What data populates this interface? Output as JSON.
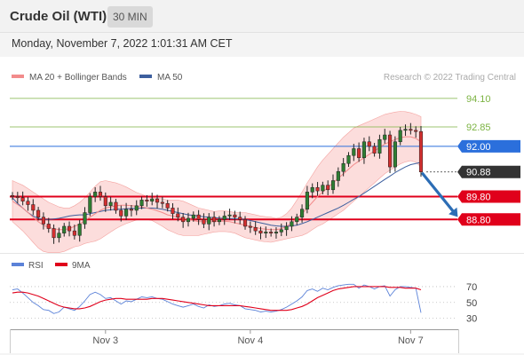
{
  "header": {
    "title": "Crude Oil (WTI)",
    "timeframe": "30 MIN",
    "datetime": "Monday, November 7, 2022 1:01:31 AM CET"
  },
  "chart_data": {
    "type": "candlestick",
    "legend": [
      {
        "name": "MA 20 + Bollinger Bands",
        "color": "#f28b8b"
      },
      {
        "name": "MA 50",
        "color": "#3d5f9e"
      }
    ],
    "credit": "Research © 2022 Trading Central",
    "y_range": [
      87.45,
      94.6
    ],
    "levels": [
      {
        "value": 94.1,
        "label": "94.10",
        "color": "#7cb342",
        "style": "line-text"
      },
      {
        "value": 92.85,
        "label": "92.85",
        "color": "#7cb342",
        "style": "line-text"
      },
      {
        "value": 92.0,
        "label": "92.00",
        "color": "#2b6fdc",
        "style": "filled"
      },
      {
        "value": 90.88,
        "label": "90.88",
        "color": "#333333",
        "style": "filled-current"
      },
      {
        "value": 89.8,
        "label": "89.80",
        "color": "#e0001b",
        "style": "filled"
      },
      {
        "value": 88.8,
        "label": "88.80",
        "color": "#e0001b",
        "style": "filled"
      }
    ],
    "x_ticks": [
      {
        "label": "Nov 3",
        "index": 18
      },
      {
        "label": "Nov 4",
        "index": 46
      },
      {
        "label": "Nov 7",
        "index": 77
      }
    ],
    "forecast": {
      "from_index": 79,
      "from_value": 90.88,
      "to_index": 85,
      "to_value": 88.95,
      "color": "#2c6db5"
    },
    "closes": [
      89.8,
      89.75,
      89.6,
      89.45,
      89.2,
      88.9,
      88.6,
      88.4,
      88.0,
      88.2,
      88.5,
      88.3,
      88.1,
      88.6,
      89.1,
      89.8,
      90.0,
      89.8,
      89.4,
      89.55,
      89.2,
      88.95,
      89.25,
      89.2,
      89.4,
      89.65,
      89.6,
      89.7,
      89.55,
      89.5,
      89.3,
      89.05,
      88.9,
      88.7,
      88.85,
      89.0,
      88.8,
      88.6,
      88.9,
      88.7,
      88.8,
      88.95,
      89.0,
      88.9,
      88.8,
      88.5,
      88.45,
      88.3,
      88.2,
      88.25,
      88.2,
      88.25,
      88.35,
      88.5,
      88.7,
      88.9,
      89.25,
      90.0,
      90.2,
      90.05,
      90.3,
      90.1,
      90.5,
      90.9,
      91.25,
      91.6,
      91.9,
      91.5,
      92.2,
      92.0,
      91.7,
      92.3,
      92.5,
      91.1,
      92.2,
      92.7,
      92.75,
      92.7,
      92.65,
      90.88
    ],
    "ma50": [
      89.75,
      89.5,
      89.3,
      89.1,
      88.95,
      88.85,
      88.8,
      88.8,
      88.82,
      88.85,
      88.9,
      88.95,
      88.98,
      89.0,
      89.0,
      89.05,
      89.1,
      89.15,
      89.2,
      89.22,
      89.25,
      89.25,
      89.27,
      89.28,
      89.28,
      89.3,
      89.3,
      89.3,
      89.28,
      89.25,
      89.2,
      89.15,
      89.1,
      89.05,
      89.0,
      88.98,
      88.95,
      88.92,
      88.9,
      88.88,
      88.86,
      88.85,
      88.84,
      88.83,
      88.82,
      88.8,
      88.75,
      88.7,
      88.65,
      88.6,
      88.55,
      88.52,
      88.5,
      88.5,
      88.52,
      88.55,
      88.62,
      88.7,
      88.8,
      88.9,
      89.0,
      89.1,
      89.2,
      89.3,
      89.42,
      89.55,
      89.68,
      89.8,
      89.95,
      90.1,
      90.25,
      90.4,
      90.55,
      90.7,
      90.85,
      90.98,
      91.1,
      91.2,
      91.25,
      91.3
    ],
    "ma20": [
      89.6,
      89.45,
      89.3,
      89.1,
      88.9,
      88.7,
      88.55,
      88.45,
      88.4,
      88.35,
      88.35,
      88.4,
      88.5,
      88.6,
      88.75,
      88.9,
      89.05,
      89.2,
      89.3,
      89.35,
      89.4,
      89.42,
      89.42,
      89.4,
      89.38,
      89.35,
      89.3,
      89.25,
      89.18,
      89.1,
      89.0,
      88.95,
      88.9,
      88.85,
      88.8,
      88.75,
      88.7,
      88.7,
      88.7,
      88.7,
      88.72,
      88.72,
      88.7,
      88.65,
      88.6,
      88.55,
      88.5,
      88.45,
      88.4,
      88.37,
      88.35,
      88.35,
      88.4,
      88.5,
      88.65,
      88.85,
      89.05,
      89.3,
      89.55,
      89.8,
      90.0,
      90.2,
      90.4,
      90.6,
      90.8,
      91.0,
      91.2,
      91.35,
      91.5,
      91.65,
      91.8,
      91.95,
      92.1,
      92.2,
      92.3,
      92.38,
      92.42,
      92.42,
      92.35,
      92.2
    ],
    "bb_half_width": [
      0.9,
      0.95,
      1.0,
      1.05,
      1.1,
      1.15,
      1.15,
      1.1,
      1.05,
      1.0,
      0.95,
      0.9,
      0.9,
      0.95,
      1.0,
      1.1,
      1.2,
      1.25,
      1.2,
      1.1,
      1.0,
      0.9,
      0.8,
      0.7,
      0.6,
      0.55,
      0.5,
      0.5,
      0.55,
      0.6,
      0.65,
      0.7,
      0.75,
      0.75,
      0.7,
      0.65,
      0.6,
      0.55,
      0.5,
      0.45,
      0.45,
      0.45,
      0.45,
      0.45,
      0.5,
      0.55,
      0.55,
      0.55,
      0.55,
      0.55,
      0.55,
      0.5,
      0.5,
      0.55,
      0.65,
      0.8,
      0.95,
      1.1,
      1.2,
      1.3,
      1.4,
      1.45,
      1.5,
      1.55,
      1.6,
      1.6,
      1.6,
      1.55,
      1.5,
      1.45,
      1.4,
      1.35,
      1.3,
      1.25,
      1.2,
      1.15,
      1.1,
      1.05,
      1.05,
      1.1
    ],
    "rsi_panel": {
      "legend": [
        {
          "name": "RSI",
          "color": "#5b82d8"
        },
        {
          "name": "9MA",
          "color": "#e0001b"
        }
      ],
      "y_range": [
        24,
        80
      ],
      "levels": [
        70,
        50,
        30
      ],
      "rsi": [
        66,
        67,
        62,
        56,
        50,
        46,
        41,
        40,
        36,
        38,
        44,
        42,
        40,
        45,
        52,
        60,
        63,
        60,
        55,
        56,
        52,
        48,
        52,
        51,
        54,
        57,
        56,
        57,
        55,
        54,
        51,
        48,
        46,
        44,
        46,
        48,
        45,
        43,
        47,
        45,
        46,
        48,
        49,
        47,
        46,
        42,
        41,
        40,
        38,
        39,
        38,
        39,
        41,
        44,
        48,
        52,
        57,
        65,
        67,
        64,
        68,
        66,
        69,
        71,
        72,
        73,
        73,
        68,
        72,
        70,
        67,
        70,
        71,
        58,
        66,
        70,
        70,
        69,
        68,
        37
      ],
      "ma": [
        62,
        63,
        63,
        62,
        60,
        58,
        55,
        52,
        49,
        46,
        44,
        43,
        42,
        42,
        43,
        45,
        48,
        51,
        53,
        54,
        55,
        55,
        54,
        54,
        54,
        54,
        54,
        55,
        55,
        55,
        54,
        53,
        52,
        51,
        50,
        49,
        48,
        47,
        46,
        46,
        46,
        46,
        46,
        46,
        46,
        45,
        44,
        43,
        42,
        41,
        40,
        40,
        40,
        40,
        41,
        43,
        45,
        48,
        52,
        56,
        59,
        62,
        65,
        67,
        68,
        69,
        70,
        70,
        70,
        70,
        70,
        70,
        70,
        69,
        69,
        69,
        68,
        68,
        68,
        66
      ]
    }
  }
}
